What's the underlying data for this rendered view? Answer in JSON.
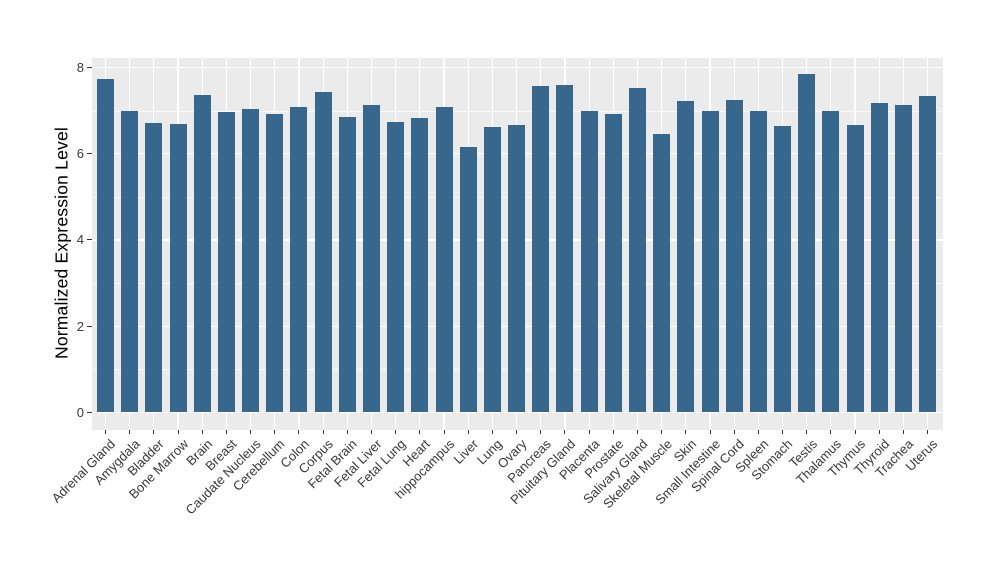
{
  "figure": {
    "background": "#FFFFFF"
  },
  "chart_data": {
    "type": "bar",
    "title": "",
    "xlabel": "",
    "ylabel": "Normalized Expression Level",
    "ylim": [
      -0.4,
      8.22
    ],
    "yticks": [
      0,
      2,
      4,
      6,
      8
    ],
    "yminor": [
      1,
      3,
      5,
      7
    ],
    "grid": "white major+minor gridlines on gray panel",
    "legend_position": "none",
    "bar_color": "#38678E",
    "panel_background": "#EBEBEB",
    "gridline_color": "#FFFFFF",
    "axis_text_color": "#383838",
    "categories": [
      "Adrenal Gland",
      "Amygdala",
      "Bladder",
      "Bone Marrow",
      "Brain",
      "Breast",
      "Caudate Nucleus",
      "Cerebellum",
      "Colon",
      "Corpus",
      "Fetal Brain",
      "Fetal Liver",
      "Fetal Lung",
      "Heart",
      "hippocampus",
      "Liver",
      "Lung",
      "Ovary",
      "Pancreas",
      "Pituitary Gland",
      "Placenta",
      "Prostate",
      "Salivary Gland",
      "Skeletal Muscle",
      "Skin",
      "Small Intestine",
      "Spinal Cord",
      "Spleen",
      "Stomach",
      "Testis",
      "Thalamus",
      "Thymus",
      "Thyroid",
      "Trachea",
      "Uterus"
    ],
    "values": [
      7.73,
      6.98,
      6.72,
      6.7,
      7.35,
      6.96,
      7.04,
      6.93,
      7.09,
      7.44,
      6.85,
      7.12,
      6.74,
      6.83,
      7.08,
      6.15,
      6.61,
      6.66,
      7.56,
      7.6,
      6.99,
      6.93,
      7.52,
      6.46,
      7.23,
      7.0,
      7.24,
      6.98,
      6.64,
      7.85,
      6.99,
      6.67,
      7.17,
      7.12,
      7.33
    ]
  }
}
